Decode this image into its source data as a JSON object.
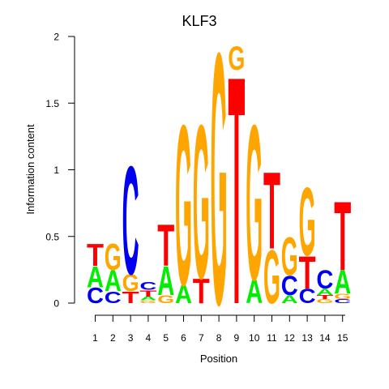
{
  "chart_data": {
    "type": "sequence-logo",
    "title": "KLF3",
    "xlabel": "Position",
    "ylabel": "Information content",
    "ylim": [
      0,
      2
    ],
    "yticks": [
      0,
      0.5,
      1,
      1.5,
      2
    ],
    "ytick_labels": [
      "0",
      "0.5",
      "1",
      "1.5",
      "2"
    ],
    "xtick_labels": [
      "1",
      "2",
      "3",
      "4",
      "5",
      "6",
      "7",
      "8",
      "9",
      "10",
      "11",
      "12",
      "13",
      "14",
      "15"
    ],
    "colors": {
      "A": "#00ee00",
      "C": "#0000ee",
      "G": "#ffa500",
      "T": "#ff0000"
    },
    "positions": [
      {
        "pos": "1",
        "stack": [
          [
            "C",
            0.12
          ],
          [
            "A",
            0.16
          ],
          [
            "T",
            0.17
          ]
        ]
      },
      {
        "pos": "2",
        "stack": [
          [
            "C",
            0.09
          ],
          [
            "A",
            0.16
          ],
          [
            "G",
            0.2
          ]
        ]
      },
      {
        "pos": "3",
        "stack": [
          [
            "T",
            0.09
          ],
          [
            "G",
            0.13
          ],
          [
            "C",
            0.83
          ]
        ]
      },
      {
        "pos": "4",
        "stack": [
          [
            "G",
            0.02
          ],
          [
            "A",
            0.03
          ],
          [
            "T",
            0.05
          ],
          [
            "C",
            0.06
          ]
        ]
      },
      {
        "pos": "5",
        "stack": [
          [
            "G",
            0.06
          ],
          [
            "A",
            0.22
          ],
          [
            "T",
            0.32
          ]
        ]
      },
      {
        "pos": "6",
        "stack": [
          [
            "A",
            0.14
          ],
          [
            "G",
            1.23
          ]
        ]
      },
      {
        "pos": "7",
        "stack": [
          [
            "T",
            0.19
          ],
          [
            "G",
            1.18
          ]
        ]
      },
      {
        "pos": "8",
        "stack": [
          [
            "G",
            1.93
          ]
        ]
      },
      {
        "pos": "9",
        "stack": [
          [
            "T",
            1.75
          ],
          [
            "G",
            0.18
          ]
        ]
      },
      {
        "pos": "10",
        "stack": [
          [
            "A",
            0.18
          ],
          [
            "G",
            1.19
          ]
        ]
      },
      {
        "pos": "11",
        "stack": [
          [
            "G",
            0.41
          ],
          [
            "T",
            0.59
          ]
        ]
      },
      {
        "pos": "12",
        "stack": [
          [
            "A",
            0.06
          ],
          [
            "C",
            0.15
          ],
          [
            "G",
            0.29
          ]
        ]
      },
      {
        "pos": "13",
        "stack": [
          [
            "C",
            0.11
          ],
          [
            "T",
            0.25
          ],
          [
            "G",
            0.52
          ]
        ]
      },
      {
        "pos": "14",
        "stack": [
          [
            "G",
            0.03
          ],
          [
            "T",
            0.03
          ],
          [
            "A",
            0.05
          ],
          [
            "C",
            0.14
          ]
        ]
      },
      {
        "pos": "15",
        "stack": [
          [
            "C",
            0.03
          ],
          [
            "G",
            0.04
          ],
          [
            "A",
            0.18
          ],
          [
            "T",
            0.53
          ]
        ]
      }
    ]
  }
}
